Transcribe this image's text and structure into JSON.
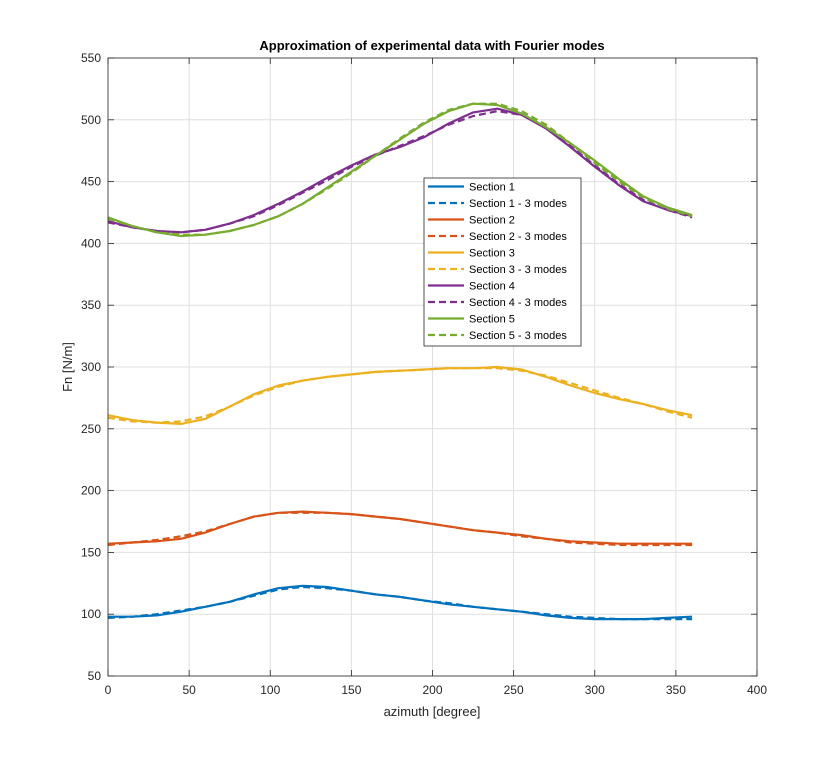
{
  "chart_data": {
    "type": "line",
    "title": "Approximation of experimental data with Fourier modes",
    "xlabel": "azimuth [degree]",
    "ylabel": "Fn [N/m]",
    "xlim": [
      0,
      400
    ],
    "ylim": [
      50,
      550
    ],
    "xticks": [
      0,
      50,
      100,
      150,
      200,
      250,
      300,
      350,
      400
    ],
    "yticks": [
      50,
      100,
      150,
      200,
      250,
      300,
      350,
      400,
      450,
      500,
      550
    ],
    "grid": true,
    "legend_position": "center",
    "x": [
      0,
      15,
      30,
      45,
      60,
      75,
      90,
      105,
      120,
      135,
      150,
      165,
      180,
      195,
      210,
      225,
      240,
      255,
      270,
      285,
      300,
      315,
      330,
      345,
      360
    ],
    "series": [
      {
        "name": "Section 1",
        "color": "#0072BD",
        "dash": false,
        "values": [
          98,
          98,
          99,
          102,
          106,
          110,
          116,
          121,
          123,
          122,
          119,
          116,
          114,
          111,
          108,
          106,
          104,
          102,
          99,
          97,
          96,
          96,
          96,
          97,
          98
        ]
      },
      {
        "name": "Section 1 - 3 modes",
        "color": "#0072BD",
        "dash": true,
        "values": [
          97,
          98,
          100,
          103,
          106,
          110,
          115,
          120,
          122,
          121,
          119,
          116,
          114,
          111,
          109,
          106,
          104,
          102,
          100,
          98,
          97,
          96,
          96,
          96,
          96
        ]
      },
      {
        "name": "Section 2",
        "color": "#D95319",
        "dash": false,
        "values": [
          157,
          158,
          159,
          161,
          166,
          173,
          179,
          182,
          183,
          182,
          181,
          179,
          177,
          174,
          171,
          168,
          166,
          164,
          161,
          159,
          158,
          157,
          157,
          157,
          157
        ]
      },
      {
        "name": "Section 2 - 3 modes",
        "color": "#D95319",
        "dash": true,
        "values": [
          156,
          158,
          160,
          163,
          167,
          173,
          179,
          182,
          182,
          182,
          181,
          179,
          177,
          174,
          171,
          168,
          166,
          163,
          161,
          158,
          157,
          156,
          156,
          156,
          156
        ]
      },
      {
        "name": "Section 3",
        "color": "#EDB120",
        "dash": false,
        "values": [
          261,
          257,
          255,
          254,
          258,
          268,
          278,
          285,
          289,
          292,
          294,
          296,
          297,
          298,
          299,
          299,
          300,
          298,
          292,
          285,
          279,
          274,
          270,
          265,
          261
        ]
      },
      {
        "name": "Section 3 - 3 modes",
        "color": "#EDB120",
        "dash": true,
        "values": [
          259,
          256,
          255,
          256,
          260,
          268,
          277,
          284,
          289,
          292,
          294,
          296,
          297,
          298,
          299,
          299,
          299,
          297,
          293,
          287,
          281,
          275,
          270,
          264,
          259
        ]
      },
      {
        "name": "Section 4",
        "color": "#7E2F8E",
        "dash": false,
        "values": [
          418,
          413,
          410,
          409,
          411,
          416,
          423,
          432,
          442,
          453,
          463,
          472,
          478,
          486,
          497,
          506,
          509,
          504,
          493,
          478,
          462,
          447,
          434,
          427,
          422
        ]
      },
      {
        "name": "Section 4 - 3 modes",
        "color": "#7E2F8E",
        "dash": true,
        "values": [
          417,
          413,
          410,
          409,
          411,
          416,
          422,
          431,
          441,
          451,
          462,
          471,
          479,
          487,
          496,
          503,
          507,
          504,
          494,
          479,
          463,
          448,
          435,
          427,
          421
        ]
      },
      {
        "name": "Section 5",
        "color": "#77AC30",
        "dash": false,
        "values": [
          421,
          414,
          409,
          406,
          407,
          410,
          415,
          422,
          432,
          445,
          458,
          471,
          484,
          497,
          507,
          513,
          512,
          505,
          494,
          481,
          467,
          452,
          438,
          429,
          423
        ]
      },
      {
        "name": "Section 5 - 3 modes",
        "color": "#77AC30",
        "dash": true,
        "values": [
          420,
          414,
          409,
          407,
          407,
          410,
          415,
          422,
          432,
          444,
          457,
          471,
          485,
          498,
          508,
          513,
          513,
          507,
          496,
          481,
          465,
          450,
          437,
          428,
          422
        ]
      }
    ]
  }
}
